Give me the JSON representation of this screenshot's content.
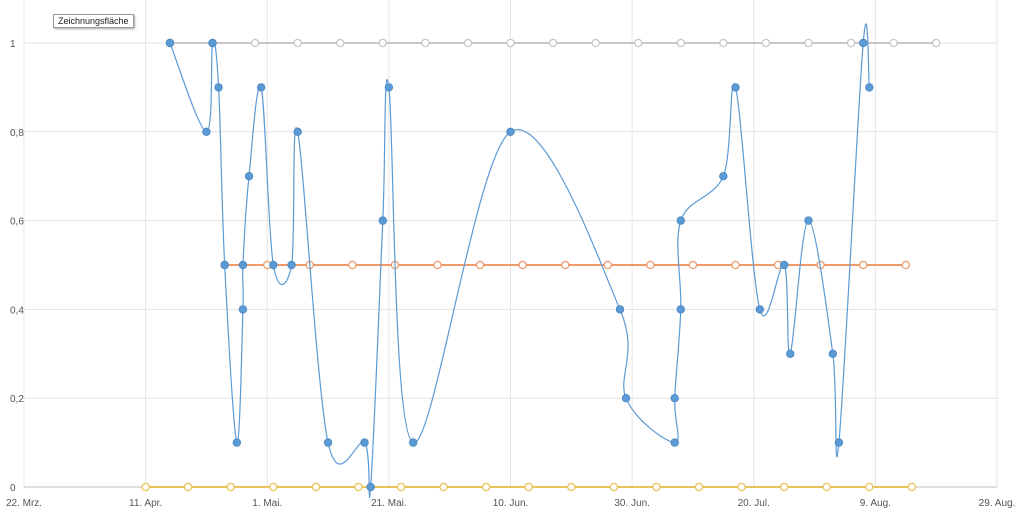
{
  "tooltip": {
    "label": "Zeichnungsfläche"
  },
  "chart_data": {
    "type": "line",
    "title": "",
    "xlabel": "",
    "ylabel": "",
    "x_is_date": true,
    "xlim": [
      "2024-03-22",
      "2024-08-29"
    ],
    "ylim": [
      0,
      1
    ],
    "grid": true,
    "x_ticks": [
      {
        "date": "2024-03-22",
        "label": "22. Mrz."
      },
      {
        "date": "2024-04-11",
        "label": "11. Apr."
      },
      {
        "date": "2024-05-01",
        "label": "1. Mai."
      },
      {
        "date": "2024-05-21",
        "label": "21. Mai."
      },
      {
        "date": "2024-06-10",
        "label": "10. Jun."
      },
      {
        "date": "2024-06-30",
        "label": "30. Jun."
      },
      {
        "date": "2024-07-20",
        "label": "20. Jul."
      },
      {
        "date": "2024-08-09",
        "label": "9. Aug."
      },
      {
        "date": "2024-08-29",
        "label": "29. Aug."
      }
    ],
    "y_ticks": [
      {
        "value": 0,
        "label": "0"
      },
      {
        "value": 0.2,
        "label": "0,2"
      },
      {
        "value": 0.4,
        "label": "0,4"
      },
      {
        "value": 0.6,
        "label": "0,6"
      },
      {
        "value": 0.8,
        "label": "0,8"
      },
      {
        "value": 1,
        "label": "1"
      }
    ],
    "series": [
      {
        "color": "#c8c8c8",
        "marker": "hollow",
        "smooth": false,
        "points": [
          [
            "2024-04-15",
            1
          ],
          [
            "2024-04-22",
            1
          ],
          [
            "2024-04-29",
            1
          ],
          [
            "2024-05-06",
            1
          ],
          [
            "2024-05-13",
            1
          ],
          [
            "2024-05-20",
            1
          ],
          [
            "2024-05-27",
            1
          ],
          [
            "2024-06-03",
            1
          ],
          [
            "2024-06-10",
            1
          ],
          [
            "2024-06-17",
            1
          ],
          [
            "2024-06-24",
            1
          ],
          [
            "2024-07-01",
            1
          ],
          [
            "2024-07-08",
            1
          ],
          [
            "2024-07-15",
            1
          ],
          [
            "2024-07-22",
            1
          ],
          [
            "2024-07-29",
            1
          ],
          [
            "2024-08-05",
            1
          ],
          [
            "2024-08-12",
            1
          ],
          [
            "2024-08-19",
            1
          ]
        ]
      },
      {
        "color": "#ed9b6c",
        "marker": "hollow",
        "smooth": false,
        "points": [
          [
            "2024-04-24",
            0.5
          ],
          [
            "2024-05-01",
            0.5
          ],
          [
            "2024-05-08",
            0.5
          ],
          [
            "2024-05-15",
            0.5
          ],
          [
            "2024-05-22",
            0.5
          ],
          [
            "2024-05-29",
            0.5
          ],
          [
            "2024-06-05",
            0.5
          ],
          [
            "2024-06-12",
            0.5
          ],
          [
            "2024-06-19",
            0.5
          ],
          [
            "2024-06-26",
            0.5
          ],
          [
            "2024-07-03",
            0.5
          ],
          [
            "2024-07-10",
            0.5
          ],
          [
            "2024-07-17",
            0.5
          ],
          [
            "2024-07-24",
            0.5
          ],
          [
            "2024-07-31",
            0.5
          ],
          [
            "2024-08-07",
            0.5
          ],
          [
            "2024-08-14",
            0.5
          ]
        ]
      },
      {
        "color": "#e8c25a",
        "marker": "hollow",
        "smooth": false,
        "points": [
          [
            "2024-04-11",
            0
          ],
          [
            "2024-04-18",
            0
          ],
          [
            "2024-04-25",
            0
          ],
          [
            "2024-05-02",
            0
          ],
          [
            "2024-05-09",
            0
          ],
          [
            "2024-05-16",
            0
          ],
          [
            "2024-05-23",
            0
          ],
          [
            "2024-05-30",
            0
          ],
          [
            "2024-06-06",
            0
          ],
          [
            "2024-06-13",
            0
          ],
          [
            "2024-06-20",
            0
          ],
          [
            "2024-06-27",
            0
          ],
          [
            "2024-07-04",
            0
          ],
          [
            "2024-07-11",
            0
          ],
          [
            "2024-07-18",
            0
          ],
          [
            "2024-07-25",
            0
          ],
          [
            "2024-08-01",
            0
          ],
          [
            "2024-08-08",
            0
          ],
          [
            "2024-08-15",
            0
          ]
        ]
      },
      {
        "color": "#5b9bd5",
        "marker": "filled",
        "smooth": true,
        "points": [
          [
            "2024-04-15",
            1
          ],
          [
            "2024-04-21",
            0.8
          ],
          [
            "2024-04-22",
            1
          ],
          [
            "2024-04-23",
            0.9
          ],
          [
            "2024-04-24",
            0.5
          ],
          [
            "2024-04-26",
            0.1
          ],
          [
            "2024-04-27",
            0.4
          ],
          [
            "2024-04-27",
            0.5
          ],
          [
            "2024-04-28",
            0.7
          ],
          [
            "2024-04-30",
            0.9
          ],
          [
            "2024-05-02",
            0.5
          ],
          [
            "2024-05-05",
            0.5
          ],
          [
            "2024-05-06",
            0.8
          ],
          [
            "2024-05-11",
            0.1
          ],
          [
            "2024-05-17",
            0.1
          ],
          [
            "2024-05-18",
            0
          ],
          [
            "2024-05-20",
            0.6
          ],
          [
            "2024-05-21",
            0.9
          ],
          [
            "2024-05-25",
            0.1
          ],
          [
            "2024-06-10",
            0.8
          ],
          [
            "2024-06-28",
            0.4
          ],
          [
            "2024-06-29",
            0.2
          ],
          [
            "2024-07-07",
            0.1
          ],
          [
            "2024-07-07",
            0.2
          ],
          [
            "2024-07-08",
            0.4
          ],
          [
            "2024-07-08",
            0.6
          ],
          [
            "2024-07-15",
            0.7
          ],
          [
            "2024-07-17",
            0.9
          ],
          [
            "2024-07-21",
            0.4
          ],
          [
            "2024-07-25",
            0.5
          ],
          [
            "2024-07-26",
            0.3
          ],
          [
            "2024-07-29",
            0.6
          ],
          [
            "2024-08-02",
            0.3
          ],
          [
            "2024-08-03",
            0.1
          ],
          [
            "2024-08-07",
            1
          ],
          [
            "2024-08-08",
            0.9
          ]
        ]
      }
    ]
  }
}
